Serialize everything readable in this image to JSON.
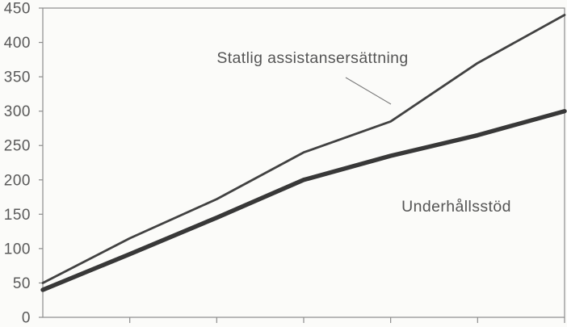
{
  "chart_data": {
    "type": "line",
    "title": "",
    "x_tick_labels": [
      "",
      "",
      "",
      "",
      "",
      "",
      ""
    ],
    "ylim": [
      0,
      450
    ],
    "y_ticks": [
      0,
      50,
      100,
      150,
      200,
      250,
      300,
      350,
      400,
      450
    ],
    "grid": false,
    "legend_position": "inline-annotations",
    "series": [
      {
        "name": "Statlig assistansersättning",
        "style": "thin",
        "values": [
          50,
          115,
          172,
          240,
          285,
          370,
          440
        ]
      },
      {
        "name": "Underhållsstöd",
        "style": "thick",
        "values": [
          40,
          92,
          145,
          200,
          235,
          265,
          300
        ]
      }
    ],
    "annotations": [
      {
        "text": "Statlig assistansersättning",
        "x": 387,
        "y": 78,
        "align": "middle",
        "series": 0
      },
      {
        "text": "Underhållsstöd",
        "x": 565,
        "y": 262,
        "align": "middle",
        "series": 1
      }
    ],
    "callout": {
      "x1": 428,
      "y1": 96,
      "x2": 484,
      "y2": 129
    }
  },
  "colors": {
    "background": "#fbfbf9",
    "line_thin": "#414141",
    "line_thick": "#383838",
    "axis": "#8c8c8c",
    "tick_label": "#595959",
    "annotation": "#555555",
    "callout": "#7a7a7a"
  }
}
